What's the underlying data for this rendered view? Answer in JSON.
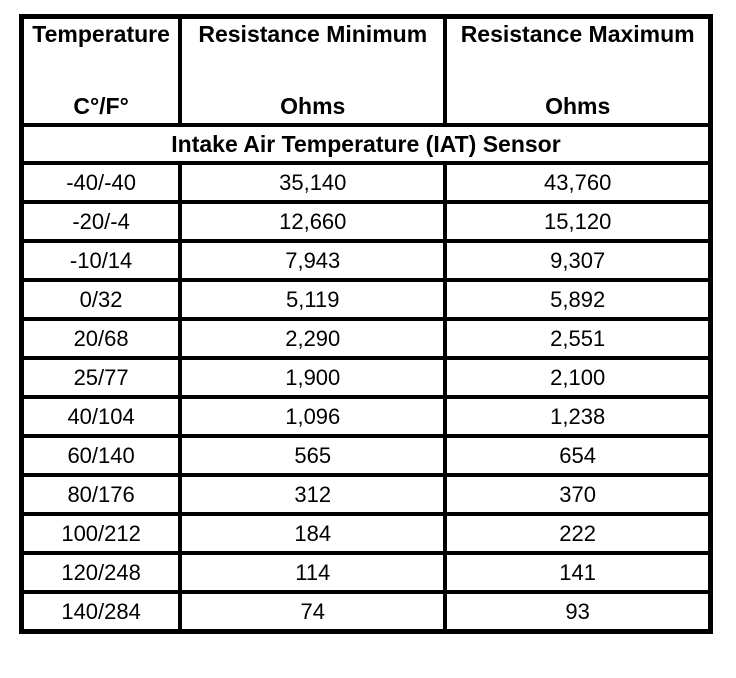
{
  "table": {
    "columns": [
      {
        "title": "Temperature",
        "unit": "C°/F°"
      },
      {
        "title": "Resistance Minimum",
        "unit": "Ohms"
      },
      {
        "title": "Resistance Maximum",
        "unit": "Ohms"
      }
    ],
    "section_title": "Intake Air Temperature (IAT) Sensor",
    "rows": [
      [
        "-40/-40",
        "35,140",
        "43,760"
      ],
      [
        "-20/-4",
        "12,660",
        "15,120"
      ],
      [
        "-10/14",
        "7,943",
        "9,307"
      ],
      [
        "0/32",
        "5,119",
        "5,892"
      ],
      [
        "20/68",
        "2,290",
        "2,551"
      ],
      [
        "25/77",
        "1,900",
        "2,100"
      ],
      [
        "40/104",
        "1,096",
        "1,238"
      ],
      [
        "60/140",
        "565",
        "654"
      ],
      [
        "80/176",
        "312",
        "370"
      ],
      [
        "100/212",
        "184",
        "222"
      ],
      [
        "120/248",
        "114",
        "141"
      ],
      [
        "140/284",
        "74",
        "93"
      ]
    ]
  },
  "colors": {
    "border": "#000000",
    "background": "#ffffff",
    "text": "#000000"
  },
  "chart_data": {
    "type": "table",
    "title": "Intake Air Temperature (IAT) Sensor",
    "columns": [
      "Temperature C°/F°",
      "Resistance Minimum Ohms",
      "Resistance Maximum Ohms"
    ],
    "rows": [
      {
        "temp_c_f": "-40/-40",
        "resistance_min_ohms": 35140,
        "resistance_max_ohms": 43760
      },
      {
        "temp_c_f": "-20/-4",
        "resistance_min_ohms": 12660,
        "resistance_max_ohms": 15120
      },
      {
        "temp_c_f": "-10/14",
        "resistance_min_ohms": 7943,
        "resistance_max_ohms": 9307
      },
      {
        "temp_c_f": "0/32",
        "resistance_min_ohms": 5119,
        "resistance_max_ohms": 5892
      },
      {
        "temp_c_f": "20/68",
        "resistance_min_ohms": 2290,
        "resistance_max_ohms": 2551
      },
      {
        "temp_c_f": "25/77",
        "resistance_min_ohms": 1900,
        "resistance_max_ohms": 2100
      },
      {
        "temp_c_f": "40/104",
        "resistance_min_ohms": 1096,
        "resistance_max_ohms": 1238
      },
      {
        "temp_c_f": "60/140",
        "resistance_min_ohms": 565,
        "resistance_max_ohms": 654
      },
      {
        "temp_c_f": "80/176",
        "resistance_min_ohms": 312,
        "resistance_max_ohms": 370
      },
      {
        "temp_c_f": "100/212",
        "resistance_min_ohms": 184,
        "resistance_max_ohms": 222
      },
      {
        "temp_c_f": "120/248",
        "resistance_min_ohms": 114,
        "resistance_max_ohms": 141
      },
      {
        "temp_c_f": "140/284",
        "resistance_min_ohms": 74,
        "resistance_max_ohms": 93
      }
    ]
  }
}
